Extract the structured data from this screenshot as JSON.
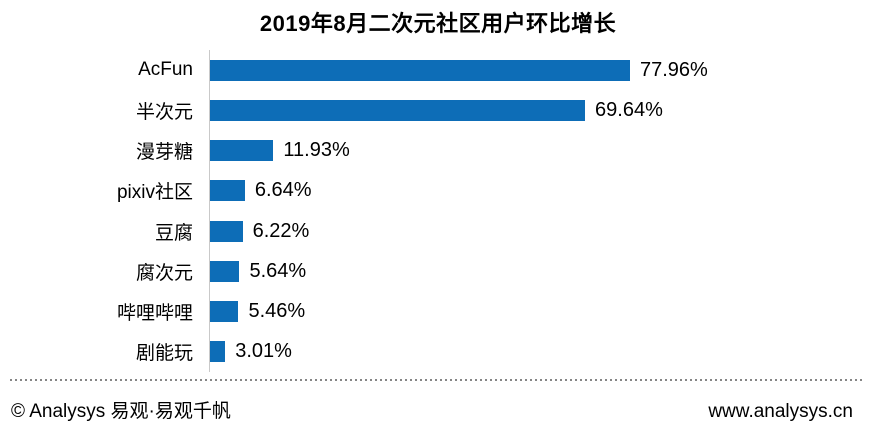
{
  "chart_data": {
    "type": "bar",
    "orientation": "horizontal",
    "title": "2019年8月二次元社区用户环比增长",
    "categories": [
      "AcFun",
      "半次元",
      "漫芽糖",
      "pixiv社区",
      "豆腐",
      "腐次元",
      "哔哩哔哩",
      "剧能玩"
    ],
    "values": [
      77.96,
      69.64,
      11.93,
      6.64,
      6.22,
      5.64,
      5.46,
      3.01
    ],
    "value_labels": [
      "77.96%",
      "69.64%",
      "11.93%",
      "6.64%",
      "6.22%",
      "5.64%",
      "5.46%",
      "3.01%"
    ],
    "unit": "%",
    "xlim": [
      0,
      80
    ],
    "grid": false,
    "legend": "none",
    "bar_color": "#0d6db7",
    "axis_line_color": "#c9c9c9"
  },
  "footer": {
    "left": "© Analysys 易观·易观千帆",
    "right": "www.analysys.cn",
    "divider_color": "#858585"
  }
}
